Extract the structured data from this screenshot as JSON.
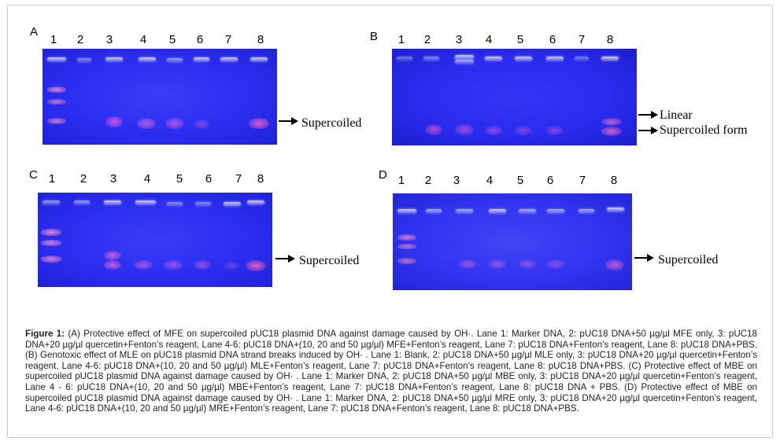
{
  "panels": {
    "A": {
      "letter": "A",
      "lanes": [
        "1",
        "2",
        "3",
        "4",
        "5",
        "6",
        "7",
        "8"
      ],
      "label": "Supercoiled"
    },
    "B": {
      "letter": "B",
      "lanes": [
        "1",
        "2",
        "3",
        "4",
        "5",
        "6",
        "7",
        "8"
      ],
      "label_linear": "Linear",
      "label_supercoiled": "Supercoiled form"
    },
    "C": {
      "letter": "C",
      "lanes": [
        "1",
        "2",
        "3",
        "4",
        "5",
        "6",
        "7",
        "8"
      ],
      "label": "Supercoiled"
    },
    "D": {
      "letter": "D",
      "lanes": [
        "1",
        "2",
        "3",
        "4",
        "5",
        "6",
        "7",
        "8"
      ],
      "label": "Supercoiled"
    }
  },
  "caption": {
    "prefix": "Figure 1:",
    "text": " (A) Protective effect of MFE on supercoiled pUC18 plasmid DNA against damage caused by OH·. Lane 1: Marker DNA, 2: pUC18 DNA+50 µg/µl MFE only, 3: pUC18 DNA+20 µg/µl quercetin+Fenton’s reagent, Lane 4-6: pUC18 DNA+(10, 20 and 50 µg/µl) MFE+Fenton’s reagent, Lane 7: pUC18 DNA+Fenton’s reagent, Lane 8: pUC18 DNA+PBS. (B) Genotoxic effect of MLE on pUC18 plasmid DNA strand breaks induced by OH· . Lane 1: Blank, 2: pUC18 DNA+50 µg/µl MLE only, 3: pUC18 DNA+20 µg/µl quercetin+Fenton’s reagent, Lane 4-6: pUC18 DNA+(10, 20 and 50 µg/µl) MLE+Fenton’s reagent, Lane 7: pUC18 DNA+Fenton’s reagent, Lane 8: pUC18 DNA+PBS. (C) Protective effect of MBE on supercoiled pUC18 plasmid DNA against damage caused by OH· . Lane 1: Marker DNA, 2: pUC18 DNA+50 µg/µl MBE only, 3: pUC18 DNA+20 µg/µl quercetin+Fenton’s reagent, Lane 4 - 6: pUC18 DNA+(10, 20 and 50 µg/µl) MBE+Fenton’s reagent, Lane 7: pUC18 DNA+Fenton’s reagent, Lane 8: pUC18 DNA + PBS. (D) Protective effect of MBE on supercoiled pUC18 plasmid DNA against damage caused by OH· . Lane 1: Marker DNA, 2: pUC18 DNA+50 µg/µl MRE only, 3: pUC18 DNA+20 µg/µl quercetin+Fenton’s reagent, Lane 4-6: pUC18 DNA+(10, 20 and 50 µg/µl) MRE+Fenton’s reagent, Lane 7: pUC18 DNA+Fenton’s reagent, Lane 8: pUC18 DNA+PBS."
  },
  "colors": {
    "gel_background": "#2a2cf0",
    "gel_edge": "#1a1ab8",
    "well_band": "#d4d6ff",
    "supercoiled_band": "#d058d0"
  }
}
